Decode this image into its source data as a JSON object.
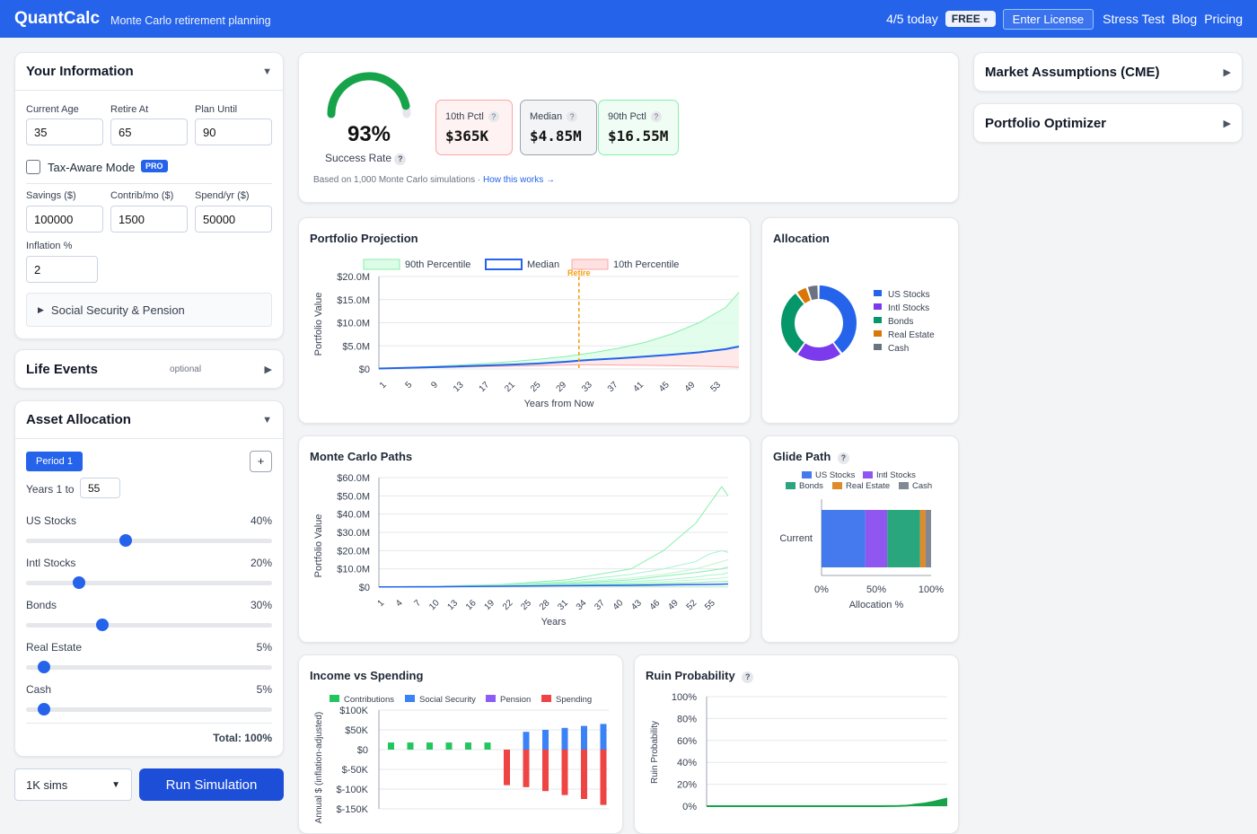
{
  "header": {
    "brand": "QuantCalc",
    "tagline": "Monte Carlo retirement planning",
    "usage": "4/5 today",
    "plan_badge": "FREE",
    "license_button": "Enter License",
    "nav": [
      "Stress Test",
      "Blog",
      "Pricing"
    ]
  },
  "your_info": {
    "title": "Your Information",
    "fields": {
      "current_age": {
        "label": "Current Age",
        "value": "35"
      },
      "retire_at": {
        "label": "Retire At",
        "value": "65"
      },
      "plan_until": {
        "label": "Plan Until",
        "value": "90"
      },
      "savings": {
        "label": "Savings ($)",
        "value": "100000"
      },
      "contrib": {
        "label": "Contrib/mo ($)",
        "value": "1500"
      },
      "spend": {
        "label": "Spend/yr ($)",
        "value": "50000"
      },
      "inflation": {
        "label": "Inflation %",
        "value": "2"
      }
    },
    "tax_aware_label": "Tax-Aware Mode",
    "tax_aware_checked": false,
    "pro_badge": "PRO",
    "social_security": "Social Security & Pension"
  },
  "life_events": {
    "title": "Life Events",
    "note": "optional"
  },
  "asset_allocation": {
    "title": "Asset Allocation",
    "period_label": "Period 1",
    "add_label": "+",
    "years_label": "Years 1 to",
    "years_value": "55",
    "sliders": [
      {
        "label": "US Stocks",
        "value_text": "40%",
        "value": 40
      },
      {
        "label": "Intl Stocks",
        "value_text": "20%",
        "value": 20
      },
      {
        "label": "Bonds",
        "value_text": "30%",
        "value": 30
      },
      {
        "label": "Real Estate",
        "value_text": "5%",
        "value": 5
      },
      {
        "label": "Cash",
        "value_text": "5%",
        "value": 5
      }
    ],
    "total": "Total: 100%"
  },
  "run": {
    "sims_option": "1K sims",
    "button": "Run Simulation"
  },
  "summary": {
    "success_pct": "93%",
    "success_value": 93,
    "success_label": "Success Rate",
    "stats": [
      {
        "label": "10th Pctl",
        "value": "$365K"
      },
      {
        "label": "Median",
        "value": "$4.85M"
      },
      {
        "label": "90th Pctl",
        "value": "$16.55M"
      }
    ],
    "note": "Based on 1,000 Monte Carlo simulations · ",
    "link": "How this works →"
  },
  "right_panels": {
    "market": "Market Assumptions (CME)",
    "optimizer": "Portfolio Optimizer"
  },
  "colors": {
    "primary": "#2563eb",
    "us_stocks": "#2563eb",
    "intl_stocks": "#7c3aed",
    "bonds": "#059669",
    "real_estate": "#d97706",
    "cash": "#6b7280",
    "contributions": "#22c55e",
    "social_security": "#3b82f6",
    "pension": "#8b5cf6",
    "spending": "#ef4444",
    "success": "#16a34a"
  },
  "chart_data": [
    {
      "id": "projection",
      "type": "area",
      "title": "Portfolio Projection",
      "xlabel": "Years from Now",
      "ylabel": "Portfolio Value",
      "ylim": [
        0,
        20000000
      ],
      "yticks": [
        "$0",
        "$5.0M",
        "$10.0M",
        "$15.0M",
        "$20.0M"
      ],
      "xticks": [
        "1",
        "5",
        "9",
        "13",
        "17",
        "21",
        "25",
        "29",
        "33",
        "37",
        "41",
        "45",
        "49",
        "53"
      ],
      "legend": [
        "90th Percentile",
        "Median",
        "10th Percentile"
      ],
      "retire_year": 31,
      "retire_label": "Retire",
      "x": [
        1,
        5,
        9,
        13,
        17,
        21,
        25,
        29,
        31,
        33,
        37,
        41,
        45,
        49,
        53,
        55
      ],
      "series": [
        {
          "name": "90th Percentile",
          "values": [
            0.1,
            0.3,
            0.55,
            0.85,
            1.2,
            1.6,
            2.1,
            2.7,
            3.1,
            3.5,
            4.5,
            5.8,
            7.6,
            10.0,
            13.3,
            16.55
          ]
        },
        {
          "name": "Median",
          "values": [
            0.1,
            0.25,
            0.4,
            0.55,
            0.75,
            0.95,
            1.2,
            1.55,
            1.8,
            2.0,
            2.3,
            2.7,
            3.1,
            3.6,
            4.3,
            4.85
          ]
        },
        {
          "name": "10th Percentile",
          "values": [
            0.1,
            0.2,
            0.3,
            0.4,
            0.5,
            0.6,
            0.7,
            0.85,
            0.9,
            0.9,
            0.85,
            0.8,
            0.7,
            0.6,
            0.45,
            0.365
          ]
        }
      ]
    },
    {
      "id": "allocation",
      "type": "pie",
      "title": "Allocation",
      "labels": [
        "US Stocks",
        "Intl Stocks",
        "Bonds",
        "Real Estate",
        "Cash"
      ],
      "values": [
        40,
        20,
        30,
        5,
        5
      ]
    },
    {
      "id": "mc_paths",
      "type": "line",
      "title": "Monte Carlo Paths",
      "xlabel": "Years",
      "ylabel": "Portfolio Value",
      "ylim": [
        0,
        60000000
      ],
      "yticks": [
        "$0",
        "$10.0M",
        "$20.0M",
        "$30.0M",
        "$40.0M",
        "$50.0M",
        "$60.0M"
      ],
      "xticks": [
        "1",
        "4",
        "7",
        "10",
        "13",
        "16",
        "19",
        "22",
        "25",
        "28",
        "31",
        "34",
        "37",
        "40",
        "43",
        "46",
        "49",
        "52",
        "55"
      ],
      "x": [
        1,
        10,
        20,
        30,
        40,
        45,
        50,
        52,
        54,
        55
      ],
      "series": [
        {
          "name": "path-1",
          "values": [
            0.1,
            0.5,
            1.5,
            4,
            10,
            20,
            35,
            45,
            55,
            50
          ]
        },
        {
          "name": "path-2",
          "values": [
            0.1,
            0.4,
            1.2,
            3,
            7,
            10,
            14,
            18,
            20,
            19
          ]
        },
        {
          "name": "path-3",
          "values": [
            0.1,
            0.4,
            1.1,
            2.5,
            5,
            7,
            10,
            12,
            14,
            15
          ]
        },
        {
          "name": "path-4",
          "values": [
            0.1,
            0.3,
            0.9,
            2,
            4,
            6,
            8,
            9,
            10,
            11
          ]
        },
        {
          "name": "path-5",
          "values": [
            0.1,
            0.3,
            0.8,
            1.6,
            3,
            4,
            5.5,
            6.5,
            7,
            8
          ]
        },
        {
          "name": "path-6",
          "values": [
            0.1,
            0.3,
            0.7,
            1.3,
            2.2,
            3,
            4,
            4.5,
            5,
            5.5
          ]
        },
        {
          "name": "path-7",
          "values": [
            0.1,
            0.25,
            0.6,
            1,
            1.6,
            2,
            2.5,
            2.8,
            3,
            3.2
          ]
        },
        {
          "name": "path-8",
          "values": [
            0.1,
            0.2,
            0.5,
            0.8,
            1,
            1.2,
            1.4,
            1.5,
            1.6,
            1.7
          ]
        },
        {
          "name": "path-9",
          "values": [
            0.1,
            0.2,
            0.4,
            0.5,
            0.5,
            0.4,
            0.3,
            0.25,
            0.2,
            0.2
          ]
        }
      ]
    },
    {
      "id": "glide_path",
      "type": "bar",
      "title": "Glide Path",
      "xlabel": "Allocation %",
      "categories": [
        "Current"
      ],
      "xticks": [
        "0%",
        "50%",
        "100%"
      ],
      "series": [
        {
          "name": "US Stocks",
          "values": [
            40
          ]
        },
        {
          "name": "Intl Stocks",
          "values": [
            20
          ]
        },
        {
          "name": "Bonds",
          "values": [
            30
          ]
        },
        {
          "name": "Real Estate",
          "values": [
            5
          ]
        },
        {
          "name": "Cash",
          "values": [
            5
          ]
        }
      ]
    },
    {
      "id": "income_spending",
      "type": "bar",
      "title": "Income vs Spending",
      "ylabel": "Annual $ (inflation-adjusted)",
      "ylim": [
        -150000,
        100000
      ],
      "yticks": [
        "$100K",
        "$50K",
        "$0",
        "$-50K",
        "$-100K",
        "$-150K"
      ],
      "legend": [
        "Contributions",
        "Social Security",
        "Pension",
        "Spending"
      ],
      "x": [
        1,
        2,
        3,
        4,
        5,
        6,
        7,
        8,
        9,
        10,
        11,
        12
      ],
      "series": [
        {
          "name": "Contributions",
          "values": [
            18000,
            18000,
            18000,
            18000,
            18000,
            18000,
            0,
            0,
            0,
            0,
            0,
            0
          ]
        },
        {
          "name": "Social Security",
          "values": [
            0,
            0,
            0,
            0,
            0,
            0,
            0,
            45000,
            50000,
            55000,
            60000,
            65000
          ]
        },
        {
          "name": "Pension",
          "values": [
            0,
            0,
            0,
            0,
            0,
            0,
            0,
            0,
            0,
            0,
            0,
            0
          ]
        },
        {
          "name": "Spending",
          "values": [
            0,
            0,
            0,
            0,
            0,
            0,
            -90000,
            -95000,
            -105000,
            -115000,
            -125000,
            -140000
          ]
        }
      ]
    },
    {
      "id": "ruin",
      "type": "area",
      "title": "Ruin Probability",
      "ylabel": "Ruin Probability",
      "ylim": [
        0,
        100
      ],
      "yticks": [
        "0%",
        "20%",
        "40%",
        "60%",
        "80%",
        "100%"
      ],
      "x": [
        1,
        31,
        40,
        44,
        46,
        48,
        50,
        52,
        54,
        55
      ],
      "values": [
        0,
        0,
        0,
        0.2,
        0.5,
        1.5,
        2.5,
        4,
        6,
        7
      ]
    }
  ]
}
